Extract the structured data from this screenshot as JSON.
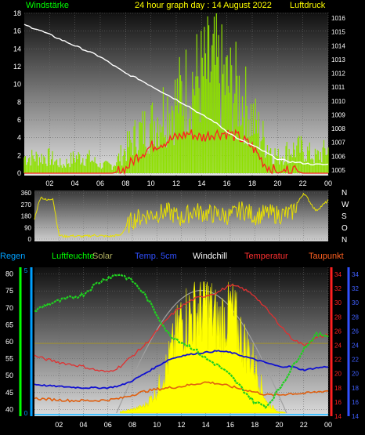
{
  "header": {
    "left_label": "Windstärke",
    "center_title": "24 hour graph day : 14 August 2022",
    "right_label": "Luftdruck"
  },
  "legend": {
    "regen": "Regen",
    "luftfeuchte": "Luftfeuchte",
    "solar": "Solar",
    "temp5cm": "Temp. 5cm",
    "windchill": "Windchill",
    "temperatur": "Temperatur",
    "taupunkt": "Taupunkt"
  },
  "colors": {
    "wind_gust": "#8ee000",
    "wind_avg": "#ff2020",
    "pressure": "#ffffff",
    "wind_dir": "#e8e000",
    "humidity": "#20d020",
    "solar": "#ffff00",
    "temp5cm": "#1010d0",
    "windchill": "#ffffff",
    "temperature": "#e03030",
    "dewpoint": "#e06010",
    "regen_axis": "#00ff00",
    "solar_axis": "#00a0ff",
    "temp_axis_red": "#ff2020",
    "temp_axis_blue": "#3050ff"
  },
  "chart_data": [
    {
      "type": "line",
      "name": "wind_pressure",
      "x_ticks": [
        "02",
        "04",
        "06",
        "08",
        "10",
        "12",
        "14",
        "16",
        "18",
        "20",
        "22",
        "00"
      ],
      "left_axis": {
        "label": "Windstärke",
        "ticks": [
          0,
          2,
          4,
          6,
          8,
          10,
          12,
          14,
          16,
          18
        ],
        "range": [
          0,
          18
        ]
      },
      "right_axis": {
        "label": "Luftdruck",
        "ticks": [
          1005,
          1006,
          1007,
          1008,
          1009,
          1010,
          1011,
          1012,
          1013,
          1014,
          1015,
          1016
        ],
        "range": [
          1004.6,
          1016.4
        ]
      },
      "series": [
        {
          "key": "gust",
          "x": [
            0,
            1,
            2,
            3,
            4,
            5,
            6,
            7,
            8,
            9,
            10,
            11,
            12,
            13,
            14,
            15,
            16,
            17,
            18,
            19,
            20,
            21,
            22,
            23,
            24
          ],
          "values": [
            2,
            2,
            2,
            1,
            2,
            2,
            1,
            1,
            3,
            5,
            6,
            8,
            9,
            11,
            12,
            13,
            11,
            10,
            7,
            4,
            2,
            3,
            3,
            2,
            3
          ]
        },
        {
          "key": "avg",
          "x": [
            0,
            1,
            2,
            3,
            4,
            5,
            6,
            7,
            8,
            9,
            10,
            11,
            12,
            13,
            14,
            15,
            16,
            17,
            18,
            19,
            20,
            21,
            22,
            23,
            24
          ],
          "values": [
            0,
            0,
            0,
            0,
            0,
            0,
            0,
            0,
            0.5,
            2,
            3,
            3.5,
            4,
            4.5,
            4,
            4.5,
            4.5,
            4,
            3,
            1,
            0,
            0.5,
            0,
            0,
            0
          ]
        },
        {
          "key": "pressure",
          "x": [
            0,
            1,
            2,
            3,
            4,
            5,
            6,
            7,
            8,
            9,
            10,
            11,
            12,
            13,
            14,
            15,
            16,
            17,
            18,
            19,
            20,
            21,
            22,
            23,
            24
          ],
          "values": [
            1015.5,
            1015.2,
            1014.8,
            1014.4,
            1014.0,
            1013.6,
            1013.2,
            1012.6,
            1012.0,
            1011.6,
            1011.1,
            1010.6,
            1010.1,
            1009.6,
            1009.0,
            1008.5,
            1007.8,
            1007.2,
            1006.8,
            1006.3,
            1005.8,
            1005.6,
            1005.5,
            1005.4,
            1005.4
          ]
        }
      ]
    },
    {
      "type": "line",
      "name": "wind_direction",
      "left_axis": {
        "ticks": [
          0,
          90,
          180,
          270,
          360
        ],
        "range": [
          0,
          360
        ]
      },
      "right_labels": [
        "N",
        "W",
        "S",
        "O",
        "N"
      ],
      "series": [
        {
          "key": "direction",
          "x": [
            0,
            0.5,
            1,
            1.5,
            2,
            2.5,
            3,
            4,
            5,
            6,
            7,
            8,
            9,
            10,
            11,
            12,
            13,
            14,
            15,
            16,
            17,
            18,
            19,
            20,
            21,
            22,
            23,
            24
          ],
          "values": [
            160,
            330,
            300,
            320,
            30,
            20,
            25,
            20,
            30,
            20,
            30,
            150,
            180,
            200,
            210,
            160,
            220,
            200,
            190,
            180,
            230,
            180,
            200,
            190,
            200,
            360,
            220,
            300
          ]
        }
      ]
    },
    {
      "type": "line",
      "name": "humidity_temperature_solar",
      "left_axis": {
        "label": "Regen",
        "ticks": [
          40,
          45,
          50,
          55,
          60,
          65,
          70,
          75,
          80
        ],
        "range": [
          38,
          82
        ]
      },
      "solar_axis": {
        "label": "Solar",
        "ticks": [
          0,
          5
        ],
        "range": [
          0,
          5
        ]
      },
      "right_axis_red": {
        "ticks": [
          14,
          16,
          18,
          20,
          22,
          24,
          26,
          28,
          30,
          32,
          34
        ],
        "range": [
          14,
          35
        ]
      },
      "right_axis_blue": {
        "ticks": [
          14,
          16,
          18,
          20,
          22,
          24,
          26,
          28,
          30,
          32,
          34
        ],
        "range": [
          14,
          35
        ]
      },
      "series": [
        {
          "key": "humidity",
          "x": [
            0,
            1,
            2,
            3,
            4,
            5,
            6,
            7,
            8,
            9,
            10,
            11,
            12,
            13,
            14,
            15,
            16,
            17,
            18,
            19,
            20,
            21,
            22,
            23,
            24
          ],
          "values": [
            69,
            71,
            72,
            73,
            74,
            77,
            79,
            80,
            78,
            74,
            68,
            62,
            60,
            58,
            55,
            53,
            50,
            46,
            42,
            41,
            46,
            52,
            58,
            62,
            62
          ]
        },
        {
          "key": "solar",
          "x": [
            0,
            1,
            2,
            3,
            4,
            5,
            6,
            7,
            8,
            9,
            10,
            11,
            12,
            13,
            14,
            15,
            16,
            17,
            18,
            19,
            20,
            21,
            22,
            23,
            24
          ],
          "values": [
            0,
            0,
            0,
            0,
            0,
            0,
            0,
            0.05,
            0.15,
            0.3,
            0.9,
            2.2,
            3.8,
            4.1,
            4.5,
            3.6,
            4.2,
            3.0,
            2.0,
            0.4,
            0.05,
            0,
            0,
            0,
            0
          ]
        },
        {
          "key": "temp5cm",
          "x": [
            0,
            1,
            2,
            3,
            4,
            5,
            6,
            7,
            8,
            9,
            10,
            11,
            12,
            13,
            14,
            15,
            16,
            17,
            18,
            19,
            20,
            21,
            22,
            23,
            24
          ],
          "values": [
            18.5,
            18.3,
            18.2,
            18.1,
            18.0,
            18.0,
            18.0,
            18.3,
            19.0,
            20.0,
            21.0,
            22.0,
            22.5,
            22.8,
            23.0,
            23.2,
            23.0,
            22.5,
            22.0,
            21.5,
            21.0,
            21.0,
            20.5,
            20.8,
            21.0
          ]
        },
        {
          "key": "temperature",
          "x": [
            0,
            1,
            2,
            3,
            4,
            5,
            6,
            7,
            8,
            9,
            10,
            11,
            12,
            13,
            14,
            15,
            16,
            17,
            18,
            19,
            20,
            21,
            22,
            23,
            24
          ],
          "values": [
            22.5,
            22.0,
            21.6,
            21.3,
            21.0,
            20.5,
            20.2,
            21.0,
            22.5,
            24.0,
            26.0,
            28.0,
            29.5,
            30.5,
            31.0,
            31.5,
            32.5,
            32.0,
            31.0,
            29.0,
            27.0,
            25.0,
            24.0,
            25.0,
            25.5
          ]
        },
        {
          "key": "dewpoint",
          "x": [
            0,
            1,
            2,
            3,
            4,
            5,
            6,
            7,
            8,
            9,
            10,
            11,
            12,
            13,
            14,
            15,
            16,
            17,
            18,
            19,
            20,
            21,
            22,
            23,
            24
          ],
          "values": [
            16.5,
            16.4,
            16.3,
            16.2,
            16.2,
            16.2,
            16.3,
            16.5,
            17.0,
            17.5,
            17.8,
            18.0,
            18.2,
            18.5,
            18.8,
            18.6,
            18.2,
            17.8,
            17.4,
            17.0,
            17.0,
            17.2,
            17.2,
            17.4,
            17.6
          ]
        }
      ]
    }
  ]
}
